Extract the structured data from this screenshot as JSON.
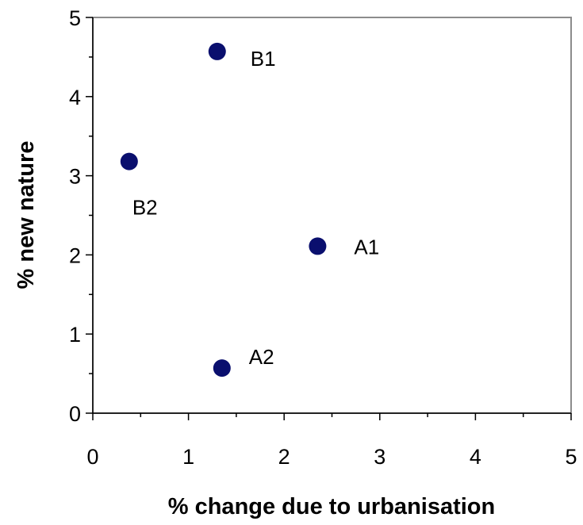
{
  "chart_data": {
    "type": "scatter",
    "title": "",
    "xlabel": "% change due to urbanisation",
    "ylabel": "% new nature",
    "xlim": [
      0,
      5
    ],
    "ylim": [
      0,
      5
    ],
    "xticks": [
      "0",
      "1",
      "2",
      "3",
      "4",
      "5"
    ],
    "yticks": [
      "0",
      "1",
      "2",
      "3",
      "4",
      "5"
    ],
    "grid": false,
    "legend": "none",
    "marker_color": "#0a0f6e",
    "points": [
      {
        "label": "B1",
        "x": 1.3,
        "y": 4.57,
        "label_pos": "right-low"
      },
      {
        "label": "B2",
        "x": 0.38,
        "y": 3.18,
        "label_pos": "below"
      },
      {
        "label": "A1",
        "x": 2.35,
        "y": 2.11,
        "label_pos": "right"
      },
      {
        "label": "A2",
        "x": 1.35,
        "y": 0.57,
        "label_pos": "right-up"
      }
    ]
  }
}
